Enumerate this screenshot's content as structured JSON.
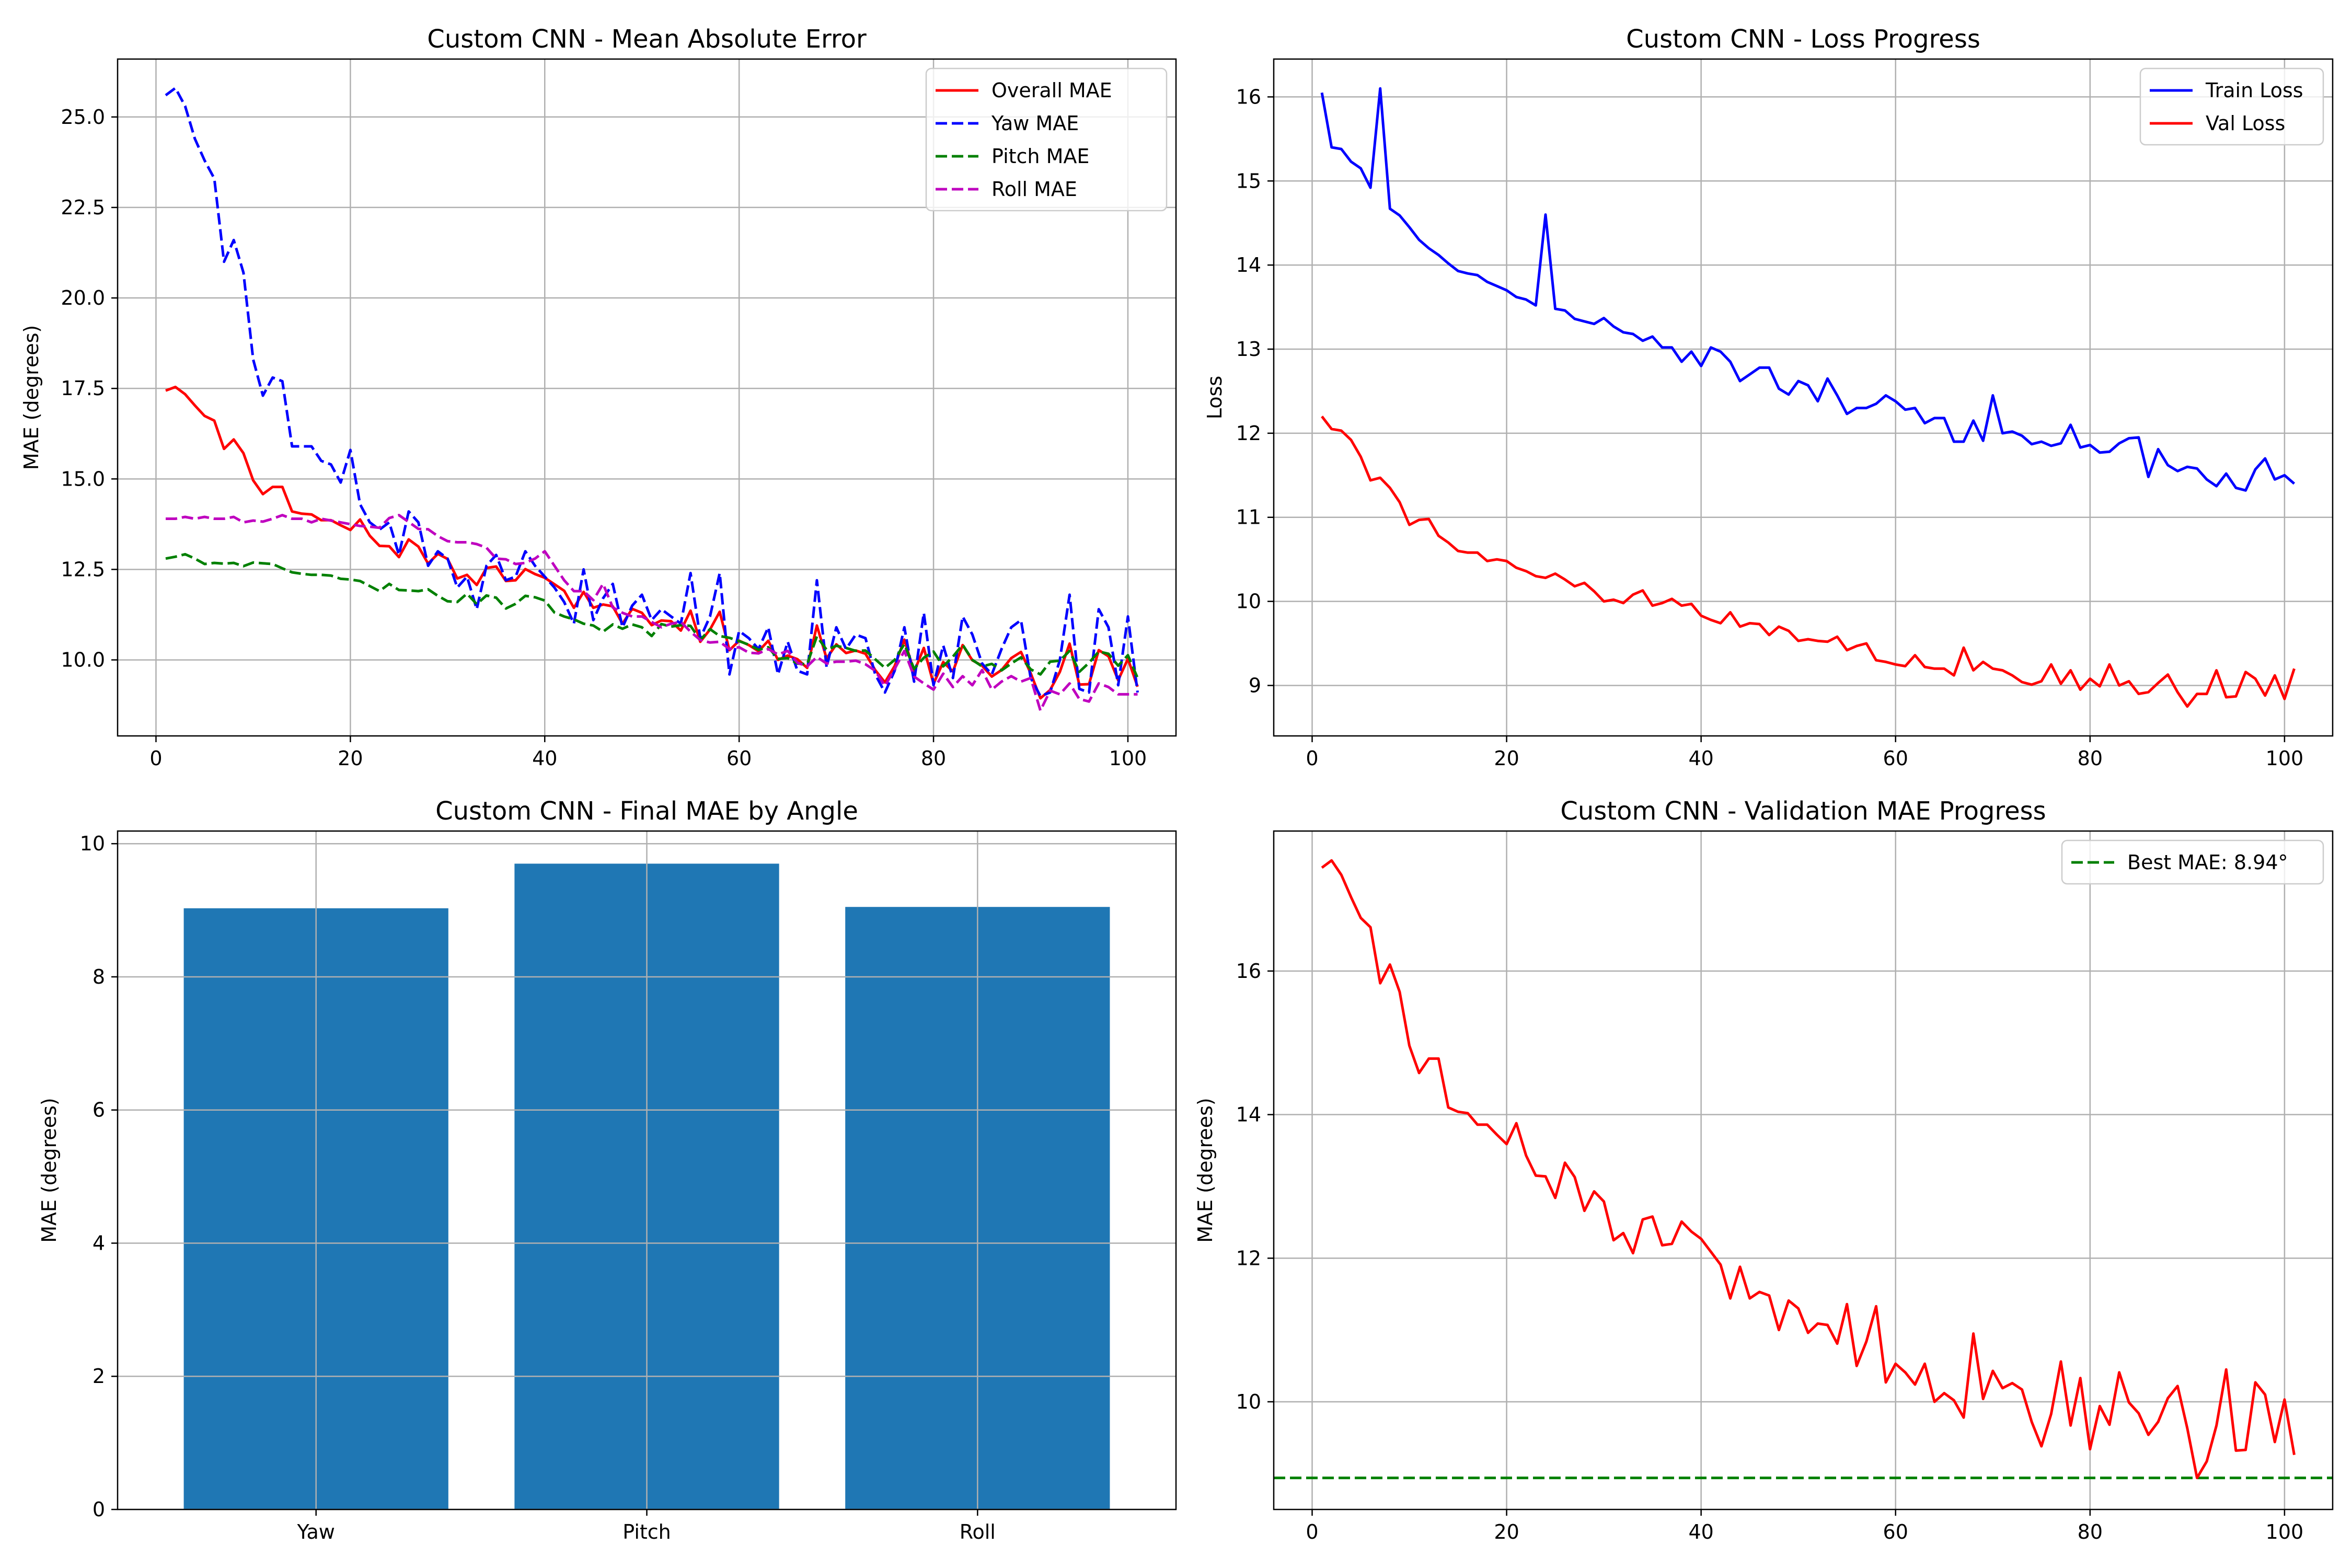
{
  "chart_data": [
    {
      "type": "line",
      "title": "Custom CNN - Mean Absolute Error",
      "xlabel": "",
      "ylabel": "MAE (degrees)",
      "xlim": [
        -3.95,
        104.95
      ],
      "ylim": [
        7.9,
        26.6
      ],
      "xticks": [
        0,
        20,
        40,
        60,
        80,
        100
      ],
      "yticks": [
        10.0,
        12.5,
        15.0,
        17.5,
        20.0,
        22.5,
        25.0
      ],
      "tick_decimals": 1,
      "grid": true,
      "legend_position": "top-right",
      "x_start": 1,
      "series": [
        {
          "name": "Overall MAE",
          "color": "#ff0000",
          "dash": "solid",
          "values": [
            17.44,
            17.54,
            17.34,
            17.03,
            16.74,
            16.61,
            15.83,
            16.09,
            15.71,
            14.96,
            14.58,
            14.78,
            14.78,
            14.1,
            14.04,
            14.02,
            13.86,
            13.86,
            13.72,
            13.59,
            13.88,
            13.43,
            13.15,
            13.14,
            12.84,
            13.33,
            13.13,
            12.66,
            12.93,
            12.79,
            12.25,
            12.35,
            12.07,
            12.54,
            12.58,
            12.18,
            12.2,
            12.51,
            12.37,
            12.27,
            12.09,
            11.91,
            11.44,
            11.88,
            11.44,
            11.53,
            11.48,
            11.0,
            11.41,
            11.3,
            10.96,
            11.09,
            11.07,
            10.81,
            11.36,
            10.5,
            10.84,
            11.33,
            10.27,
            10.53,
            10.41,
            10.24,
            10.53,
            10.0,
            10.12,
            10.02,
            9.78,
            10.95,
            10.04,
            10.43,
            10.19,
            10.26,
            10.17,
            9.72,
            9.38,
            9.83,
            10.56,
            9.67,
            10.33,
            9.34,
            9.94,
            9.68,
            10.41,
            9.99,
            9.84,
            9.54,
            9.72,
            10.05,
            10.22,
            9.63,
            8.94,
            9.17,
            9.67,
            10.45,
            9.32,
            9.33,
            10.27,
            10.1,
            9.44,
            10.03,
            9.26
          ]
        },
        {
          "name": "Yaw MAE",
          "color": "#0000ff",
          "dash": "dashed",
          "values": [
            25.6,
            25.8,
            25.3,
            24.4,
            23.8,
            23.3,
            21.0,
            21.6,
            20.7,
            18.3,
            17.3,
            17.8,
            17.7,
            15.9,
            15.9,
            15.9,
            15.5,
            15.4,
            14.9,
            15.8,
            14.3,
            13.8,
            13.6,
            13.8,
            12.9,
            14.1,
            13.8,
            12.6,
            13.0,
            12.8,
            12.0,
            12.3,
            11.4,
            12.6,
            12.9,
            12.2,
            12.3,
            13.0,
            12.6,
            12.3,
            12.0,
            11.6,
            11.0,
            12.5,
            11.1,
            11.7,
            12.1,
            10.9,
            11.5,
            11.8,
            11.1,
            11.4,
            11.2,
            11.0,
            12.4,
            10.6,
            11.2,
            12.4,
            9.6,
            10.8,
            10.6,
            10.3,
            10.9,
            9.6,
            10.5,
            9.7,
            9.6,
            12.2,
            9.8,
            10.9,
            10.3,
            10.7,
            10.6,
            9.6,
            9.1,
            9.7,
            10.9,
            9.4,
            11.3,
            9.3,
            10.4,
            9.5,
            11.2,
            10.7,
            9.9,
            9.6,
            10.3,
            10.9,
            11.1,
            9.5,
            9.0,
            9.1,
            10.0,
            11.8,
            9.2,
            9.1,
            11.4,
            10.9,
            9.3,
            11.2,
            9.1
          ]
        },
        {
          "name": "Pitch MAE",
          "color": "#008000",
          "dash": "dashed",
          "values": [
            12.8,
            12.85,
            12.92,
            12.8,
            12.65,
            12.68,
            12.66,
            12.68,
            12.59,
            12.69,
            12.67,
            12.65,
            12.53,
            12.42,
            12.38,
            12.35,
            12.35,
            12.33,
            12.24,
            12.22,
            12.18,
            12.04,
            11.9,
            12.1,
            11.93,
            11.92,
            11.9,
            11.95,
            11.77,
            11.62,
            11.6,
            11.83,
            11.54,
            11.78,
            11.72,
            11.42,
            11.55,
            11.77,
            11.73,
            11.64,
            11.31,
            11.2,
            11.12,
            11.0,
            10.95,
            10.78,
            10.98,
            10.86,
            10.98,
            10.9,
            10.66,
            10.99,
            10.92,
            10.96,
            10.94,
            10.55,
            10.85,
            10.66,
            10.61,
            10.52,
            10.42,
            10.28,
            10.35,
            10.03,
            10.05,
            9.9,
            9.88,
            10.65,
            10.28,
            10.39,
            10.33,
            10.25,
            10.26,
            10.02,
            9.78,
            10.0,
            10.44,
            9.75,
            10.06,
            10.23,
            9.82,
            10.09,
            10.42,
            10.0,
            9.82,
            9.89,
            9.71,
            9.9,
            10.07,
            9.74,
            9.6,
            9.95,
            9.98,
            10.25,
            9.67,
            9.92,
            10.23,
            10.17,
            9.84,
            10.13,
            9.5
          ]
        },
        {
          "name": "Roll MAE",
          "color": "#bf00bf",
          "dash": "dashed",
          "values": [
            13.9,
            13.9,
            13.95,
            13.9,
            13.95,
            13.9,
            13.9,
            13.95,
            13.8,
            13.85,
            13.82,
            13.9,
            14.0,
            13.9,
            13.9,
            13.8,
            13.9,
            13.85,
            13.8,
            13.75,
            13.7,
            13.68,
            13.65,
            13.92,
            14.0,
            13.81,
            13.62,
            13.61,
            13.42,
            13.28,
            13.25,
            13.25,
            13.2,
            13.1,
            12.8,
            12.78,
            12.65,
            12.68,
            12.8,
            13.0,
            12.6,
            12.2,
            11.9,
            11.9,
            11.65,
            12.1,
            11.45,
            11.3,
            11.2,
            11.2,
            11.05,
            10.9,
            11.0,
            11.05,
            10.78,
            10.55,
            10.48,
            10.5,
            10.3,
            10.35,
            10.2,
            10.18,
            10.3,
            10.15,
            10.25,
            9.92,
            9.82,
            10.08,
            9.9,
            9.95,
            9.95,
            9.98,
            9.88,
            9.7,
            9.28,
            9.75,
            10.25,
            9.54,
            9.35,
            9.18,
            9.62,
            9.25,
            9.55,
            9.3,
            9.72,
            9.18,
            9.4,
            9.55,
            9.4,
            9.5,
            8.6,
            9.15,
            9.05,
            9.35,
            8.92,
            8.85,
            9.35,
            9.25,
            9.05,
            9.05,
            9.05
          ]
        }
      ]
    },
    {
      "type": "line",
      "title": "Custom CNN - Loss Progress",
      "xlabel": "",
      "ylabel": "Loss",
      "xlim": [
        -3.95,
        104.95
      ],
      "ylim": [
        8.4,
        16.45
      ],
      "xticks": [
        0,
        20,
        40,
        60,
        80,
        100
      ],
      "yticks": [
        9,
        10,
        11,
        12,
        13,
        14,
        15,
        16
      ],
      "tick_decimals": 0,
      "grid": true,
      "legend_position": "top-right",
      "x_start": 1,
      "series": [
        {
          "name": "Train Loss",
          "color": "#0000ff",
          "dash": "solid",
          "values": [
            16.05,
            15.4,
            15.38,
            15.23,
            15.15,
            14.92,
            16.1,
            14.67,
            14.59,
            14.45,
            14.3,
            14.2,
            14.12,
            14.02,
            13.93,
            13.9,
            13.88,
            13.8,
            13.75,
            13.7,
            13.62,
            13.59,
            13.52,
            14.6,
            13.48,
            13.46,
            13.36,
            13.33,
            13.3,
            13.37,
            13.27,
            13.2,
            13.18,
            13.1,
            13.15,
            13.02,
            13.02,
            12.85,
            12.97,
            12.8,
            13.02,
            12.97,
            12.85,
            12.62,
            12.7,
            12.78,
            12.78,
            12.53,
            12.46,
            12.62,
            12.57,
            12.38,
            12.65,
            12.45,
            12.23,
            12.3,
            12.3,
            12.35,
            12.45,
            12.38,
            12.28,
            12.3,
            12.12,
            12.18,
            12.18,
            11.9,
            11.9,
            12.15,
            11.91,
            12.45,
            12.0,
            12.02,
            11.97,
            11.87,
            11.9,
            11.85,
            11.88,
            12.1,
            11.83,
            11.86,
            11.77,
            11.78,
            11.88,
            11.94,
            11.95,
            11.48,
            11.81,
            11.62,
            11.55,
            11.6,
            11.58,
            11.45,
            11.37,
            11.52,
            11.35,
            11.32,
            11.57,
            11.7,
            11.45,
            11.5,
            11.4
          ]
        },
        {
          "name": "Val Loss",
          "color": "#ff0000",
          "dash": "solid",
          "values": [
            12.2,
            12.05,
            12.03,
            11.92,
            11.72,
            11.44,
            11.47,
            11.35,
            11.18,
            10.91,
            10.97,
            10.98,
            10.78,
            10.7,
            10.6,
            10.58,
            10.58,
            10.48,
            10.5,
            10.48,
            10.4,
            10.36,
            10.3,
            10.28,
            10.33,
            10.26,
            10.18,
            10.22,
            10.12,
            10.0,
            10.02,
            9.98,
            10.08,
            10.13,
            9.95,
            9.98,
            10.03,
            9.95,
            9.97,
            9.83,
            9.78,
            9.74,
            9.87,
            9.7,
            9.74,
            9.73,
            9.6,
            9.7,
            9.65,
            9.53,
            9.55,
            9.53,
            9.52,
            9.58,
            9.42,
            9.47,
            9.5,
            9.3,
            9.28,
            9.25,
            9.23,
            9.36,
            9.22,
            9.2,
            9.2,
            9.12,
            9.45,
            9.18,
            9.28,
            9.2,
            9.18,
            9.12,
            9.04,
            9.01,
            9.05,
            9.25,
            9.02,
            9.18,
            8.95,
            9.08,
            8.99,
            9.25,
            9.0,
            9.05,
            8.9,
            8.92,
            9.03,
            9.13,
            8.92,
            8.75,
            8.9,
            8.9,
            9.18,
            8.86,
            8.87,
            9.16,
            9.08,
            8.88,
            9.12,
            8.84,
            9.2
          ]
        }
      ]
    },
    {
      "type": "bar",
      "title": "Custom CNN - Final MAE by Angle",
      "xlabel": "",
      "ylabel": "MAE (degrees)",
      "categories": [
        "Yaw",
        "Pitch",
        "Roll"
      ],
      "values": [
        9.03,
        9.7,
        9.05
      ],
      "ylim": [
        0,
        10.19
      ],
      "yticks": [
        0,
        2,
        4,
        6,
        8,
        10
      ],
      "tick_decimals": 0,
      "bar_color": "#1f77b4",
      "grid": true
    },
    {
      "type": "line",
      "title": "Custom CNN - Validation MAE Progress",
      "xlabel": "",
      "ylabel": "MAE (degrees)",
      "xlim": [
        -3.95,
        104.95
      ],
      "ylim": [
        8.5,
        17.95
      ],
      "xticks": [
        0,
        20,
        40,
        60,
        80,
        100
      ],
      "yticks": [
        10,
        12,
        14,
        16
      ],
      "tick_decimals": 0,
      "grid": true,
      "legend_position": "top-right",
      "x_start": 1,
      "series": [
        {
          "name": "",
          "color": "#ff0000",
          "dash": "solid",
          "values": [
            17.44,
            17.54,
            17.34,
            17.03,
            16.74,
            16.61,
            15.83,
            16.09,
            15.71,
            14.96,
            14.58,
            14.78,
            14.78,
            14.1,
            14.04,
            14.02,
            13.86,
            13.86,
            13.72,
            13.59,
            13.88,
            13.43,
            13.15,
            13.14,
            12.84,
            13.33,
            13.13,
            12.66,
            12.93,
            12.79,
            12.25,
            12.35,
            12.07,
            12.54,
            12.58,
            12.18,
            12.2,
            12.51,
            12.37,
            12.27,
            12.09,
            11.91,
            11.44,
            11.88,
            11.44,
            11.53,
            11.48,
            11.0,
            11.41,
            11.3,
            10.96,
            11.09,
            11.07,
            10.81,
            11.36,
            10.5,
            10.84,
            11.33,
            10.27,
            10.53,
            10.41,
            10.24,
            10.53,
            10.0,
            10.12,
            10.02,
            9.78,
            10.95,
            10.04,
            10.43,
            10.19,
            10.26,
            10.17,
            9.72,
            9.38,
            9.83,
            10.56,
            9.67,
            10.33,
            9.34,
            9.94,
            9.68,
            10.41,
            9.99,
            9.84,
            9.54,
            9.72,
            10.05,
            10.22,
            9.63,
            8.94,
            9.17,
            9.67,
            10.45,
            9.32,
            9.33,
            10.27,
            10.1,
            9.44,
            10.03,
            9.26
          ]
        }
      ],
      "hlines": [
        {
          "name": "Best MAE: 8.94°",
          "y": 8.94,
          "color": "#008000",
          "dash": "dashed"
        }
      ]
    }
  ]
}
